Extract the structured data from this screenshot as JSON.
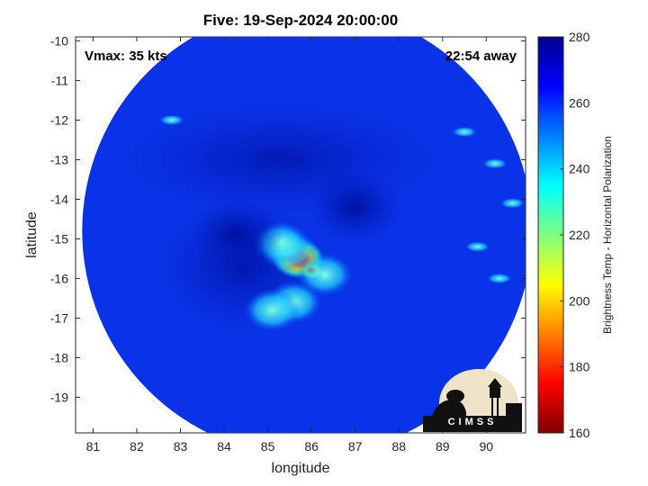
{
  "chart_data": {
    "type": "heatmap",
    "title": "Five: 19-Sep-2024 20:00:00",
    "annotations": {
      "vmax": "Vmax: 35 kts",
      "away": "22:54 away"
    },
    "xlabel": "longitude",
    "ylabel": "latitude",
    "xlim": [
      80.6,
      90.9
    ],
    "ylim": [
      -19.9,
      -9.9
    ],
    "x_ticks": [
      "81",
      "82",
      "83",
      "84",
      "85",
      "86",
      "87",
      "88",
      "89",
      "90"
    ],
    "y_ticks": [
      "-10",
      "-11",
      "-12",
      "-13",
      "-14",
      "-15",
      "-16",
      "-17",
      "-18",
      "-19"
    ],
    "colorbar": {
      "label": "Brightness Temp - Horizontal Polarization",
      "range": [
        160,
        280
      ],
      "ticks": [
        "280",
        "260",
        "240",
        "220",
        "200",
        "180",
        "160"
      ],
      "colormap": [
        "#7f0000",
        "#ff0000",
        "#ff8000",
        "#ffff00",
        "#80ff80",
        "#00ffff",
        "#0080ff",
        "#0000ff",
        "#00008f"
      ]
    },
    "swath_center": [
      85.9,
      -14.8
    ],
    "field": {
      "background": 262,
      "features": [
        {
          "lon": 85.7,
          "lat": -15.5,
          "value": 180,
          "note": "core"
        },
        {
          "lon": 86.0,
          "lat": -15.8,
          "value": 168
        },
        {
          "lon": 85.5,
          "lat": -15.3,
          "value": 205
        },
        {
          "lon": 85.3,
          "lat": -15.1,
          "value": 235
        },
        {
          "lon": 85.6,
          "lat": -16.6,
          "value": 228
        },
        {
          "lon": 85.1,
          "lat": -16.8,
          "value": 240
        },
        {
          "lon": 86.3,
          "lat": -15.9,
          "value": 225
        },
        {
          "lon": 84.3,
          "lat": -14.9,
          "value": 268
        },
        {
          "lon": 87.0,
          "lat": -14.2,
          "value": 266
        }
      ]
    },
    "grid": false,
    "logo": "CIMSS"
  }
}
